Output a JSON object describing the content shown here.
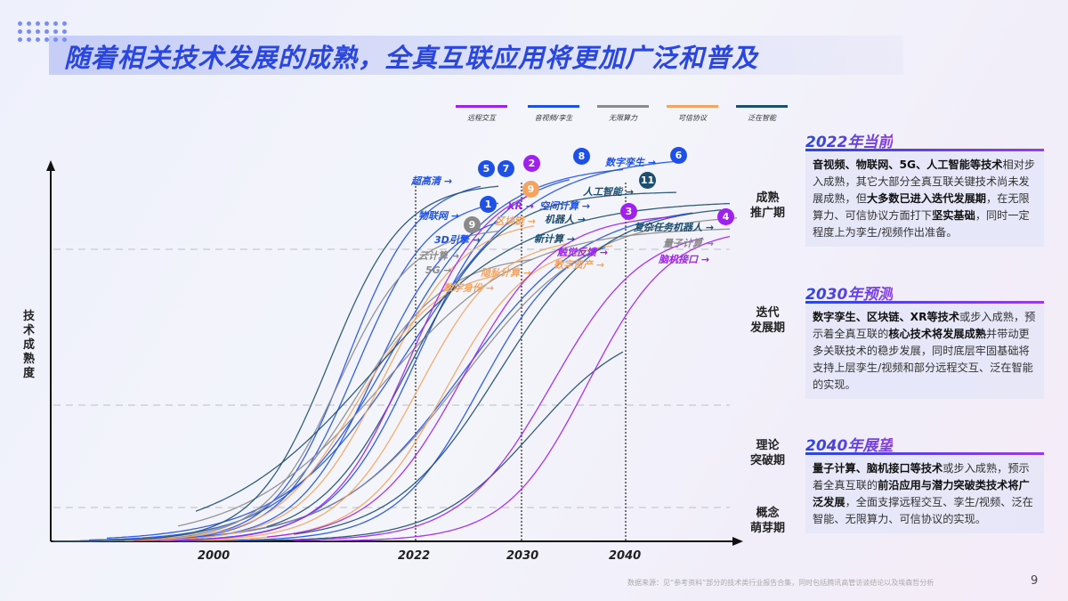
{
  "title": "随着相关技术发展的成熟，全真互联应用将更加广泛和普及",
  "colors": {
    "remote": "#a020f0",
    "av": "#1e50e8",
    "compute": "#8a8a8a",
    "trust": "#f4a460",
    "ai": "#1d4e6e"
  },
  "legend": [
    {
      "label": "远程交互",
      "color": "#a020f0"
    },
    {
      "label": "音视频/孪生",
      "color": "#1e50e8"
    },
    {
      "label": "无限算力",
      "color": "#8a8a8a"
    },
    {
      "label": "可信协议",
      "color": "#f4a460"
    },
    {
      "label": "泛在智能",
      "color": "#1d4e6e"
    }
  ],
  "axis": {
    "y_label": "技术成熟度",
    "x_ticks": [
      "2000",
      "2022",
      "2030",
      "2040"
    ]
  },
  "stages": [
    "成熟\n推广期",
    "迭代\n发展期",
    "理论\n突破期",
    "概念\n萌芽期"
  ],
  "tech_labels": [
    {
      "text": "超高清",
      "color": "#1e50e8"
    },
    {
      "text": "3D引擎",
      "color": "#1e50e8"
    },
    {
      "text": "物联网",
      "color": "#1e50e8"
    },
    {
      "text": "云计算",
      "color": "#8a8a8a"
    },
    {
      "text": "5G",
      "color": "#8a8a8a"
    },
    {
      "text": "XR",
      "color": "#a020f0"
    },
    {
      "text": "区块链",
      "color": "#f4a460"
    },
    {
      "text": "隐私计算",
      "color": "#f4a460"
    },
    {
      "text": "数字身份",
      "color": "#f4a460"
    },
    {
      "text": "空间计算",
      "color": "#1e50e8"
    },
    {
      "text": "机器人",
      "color": "#1d4e6e"
    },
    {
      "text": "新计算",
      "color": "#1d4e6e"
    },
    {
      "text": "数字孪生",
      "color": "#1e50e8"
    },
    {
      "text": "人工智能",
      "color": "#1d4e6e"
    },
    {
      "text": "触觉反馈",
      "color": "#a020f0"
    },
    {
      "text": "数字资产",
      "color": "#f4a460"
    },
    {
      "text": "复杂任务机器人",
      "color": "#1d4e6e"
    },
    {
      "text": "量子计算",
      "color": "#8a8a8a"
    },
    {
      "text": "脑机接口",
      "color": "#a020f0"
    }
  ],
  "badges": [
    {
      "n": "5",
      "color": "#1e50e8"
    },
    {
      "n": "7",
      "color": "#1e50e8"
    },
    {
      "n": "2",
      "color": "#a020f0"
    },
    {
      "n": "8",
      "color": "#1e50e8"
    },
    {
      "n": "6",
      "color": "#1e50e8"
    },
    {
      "n": "1",
      "color": "#1e50e8"
    },
    {
      "n": "9",
      "color": "#8a8a8a"
    },
    {
      "n": "9",
      "color": "#f4a460"
    },
    {
      "n": "11",
      "color": "#1d4e6e"
    },
    {
      "n": "3",
      "color": "#a020f0"
    },
    {
      "n": "4",
      "color": "#a020f0"
    }
  ],
  "sections": [
    {
      "title": "2022年当前",
      "parts": [
        [
          "b",
          "音视频、物联网、5G、人工智能等技术"
        ],
        [
          "n",
          "相对步入成熟，其它大部分全真互联关键技术尚未发展成熟，但"
        ],
        [
          "b",
          "大多数已进入迭代发展期"
        ],
        [
          "n",
          "，在无限算力、可信协议方面打下"
        ],
        [
          "b",
          "坚实基础"
        ],
        [
          "n",
          "，同时一定程度上为孪生/视频作出准备。"
        ]
      ]
    },
    {
      "title": "2030年预测",
      "parts": [
        [
          "b",
          "数字孪生、区块链、XR等技术"
        ],
        [
          "n",
          "或步入成熟，预示着全真互联的"
        ],
        [
          "b",
          "核心技术将发展成熟"
        ],
        [
          "n",
          "并带动更多关联技术的稳步发展，同时底层牢固基础将支持上层孪生/视频和部分远程交互、泛在智能的实现。"
        ]
      ]
    },
    {
      "title": "2040年展望",
      "parts": [
        [
          "b",
          "量子计算、脑机接口等技术"
        ],
        [
          "n",
          "或步入成熟，预示着全真互联的"
        ],
        [
          "b",
          "前沿应用与潜力突破类技术将广泛发展"
        ],
        [
          "n",
          "，全面支撑远程交互、孪生/视频、泛在智能、无限算力、可信协议的实现。"
        ]
      ]
    }
  ],
  "footer": {
    "source": "数据来源：见“参考资料”部分的技术类行业报告合集，同时包括腾讯高管访谈结论以及埃森哲分析",
    "page": "9"
  }
}
